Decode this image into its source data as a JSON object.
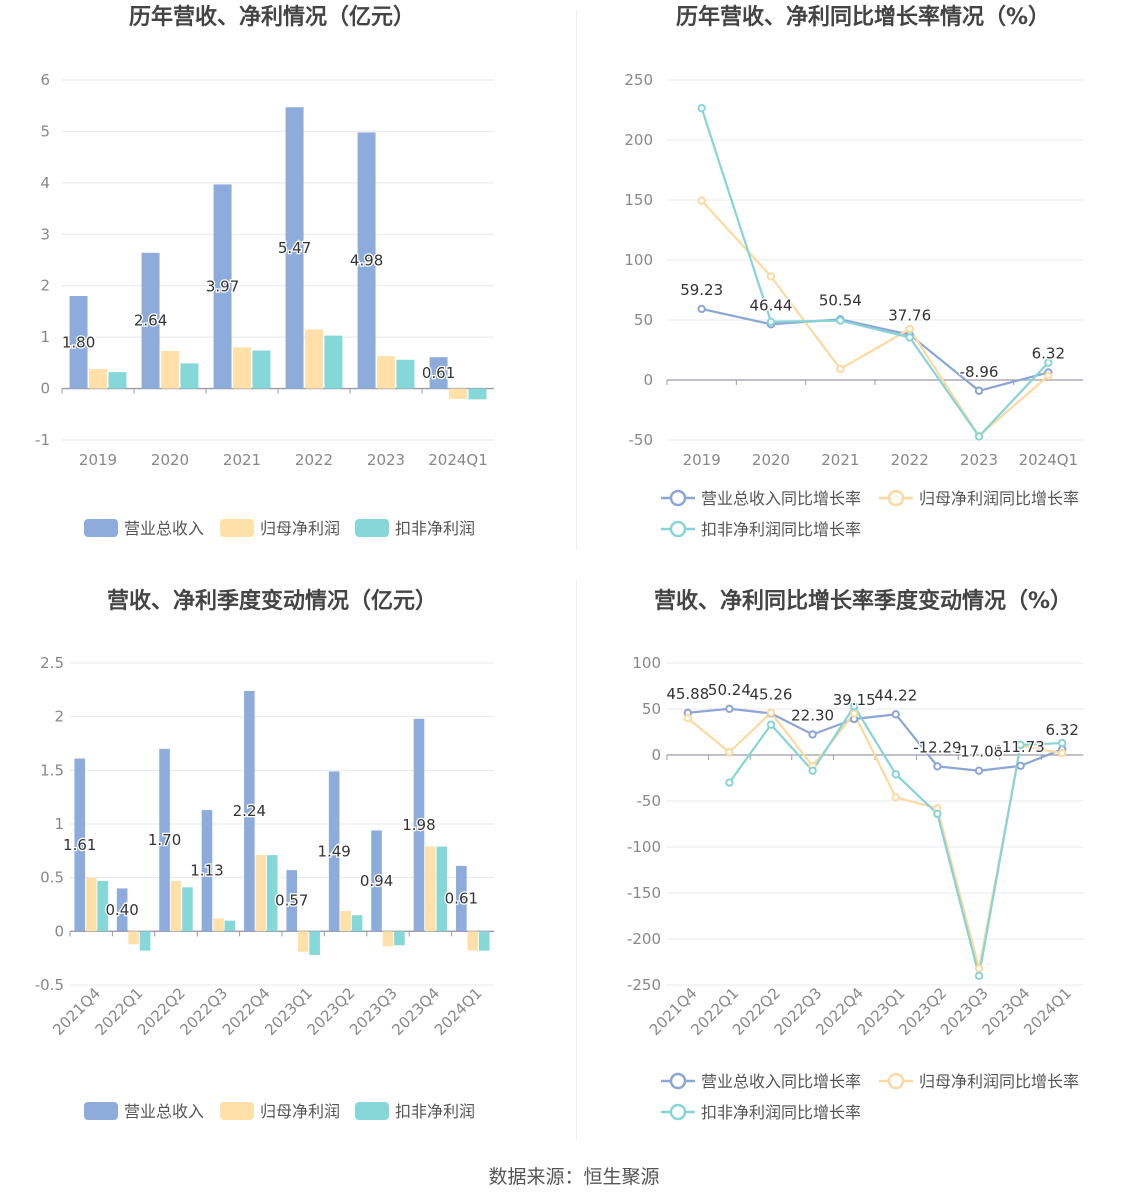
{
  "colors": {
    "revenue": "#8eacdb",
    "parent_profit": "#ffe0a8",
    "deducted_profit": "#86d8d8",
    "revenue_line": "#8ba6d6",
    "parent_line": "#fdd9a0",
    "deducted_line": "#86d4d6",
    "grid": "#e8e8ee",
    "axis_text": "#888888",
    "title": "#444444"
  },
  "source": "数据来源：恒生聚源",
  "chart_data": [
    {
      "type": "bar",
      "title": "历年营收、净利情况（亿元）",
      "categories": [
        "2019",
        "2020",
        "2021",
        "2022",
        "2023",
        "2024Q1"
      ],
      "yticks": [
        "6",
        "5",
        "4",
        "3",
        "2",
        "1",
        "0",
        "-1"
      ],
      "ylim": [
        -1,
        6
      ],
      "series": [
        {
          "name": "营业总收入",
          "values": [
            1.8,
            2.64,
            3.97,
            5.47,
            4.98,
            0.61
          ],
          "labels": [
            "1.80",
            "2.64",
            "3.97",
            "5.47",
            "4.98",
            "0.61"
          ]
        },
        {
          "name": "归母净利润",
          "values": [
            0.38,
            0.73,
            0.8,
            1.15,
            0.63,
            -0.2
          ]
        },
        {
          "name": "扣非净利润",
          "values": [
            0.32,
            0.49,
            0.74,
            1.03,
            0.56,
            -0.21
          ]
        }
      ]
    },
    {
      "type": "line",
      "title": "历年营收、净利同比增长率情况（%）",
      "categories": [
        "2019",
        "2020",
        "2021",
        "2022",
        "2023",
        "2024Q1"
      ],
      "yticks": [
        "250",
        "200",
        "150",
        "100",
        "50",
        "0",
        "-50"
      ],
      "ylim": [
        -50,
        250
      ],
      "series": [
        {
          "name": "营业总收入同比增长率",
          "values": [
            59.23,
            46.44,
            50.54,
            37.76,
            -8.96,
            6.32
          ],
          "labels": [
            "59.23",
            "46.44",
            "50.54",
            "37.76",
            "-8.96",
            "6.32"
          ]
        },
        {
          "name": "归母净利润同比增长率",
          "values": [
            149.5,
            86.3,
            9.2,
            42.5,
            -46.5,
            3.5
          ]
        },
        {
          "name": "扣非净利润同比增长率",
          "values": [
            226.5,
            48.5,
            49.5,
            35.5,
            -47.0,
            14.5
          ]
        }
      ]
    },
    {
      "type": "bar",
      "title": "营收、净利季度变动情况（亿元）",
      "categories": [
        "2021Q4",
        "2022Q1",
        "2022Q2",
        "2022Q3",
        "2022Q4",
        "2023Q1",
        "2023Q2",
        "2023Q3",
        "2023Q4",
        "2024Q1"
      ],
      "yticks": [
        "2.5",
        "2",
        "1.5",
        "1",
        "0.5",
        "0",
        "-0.5"
      ],
      "ylim": [
        -0.5,
        2.5
      ],
      "series": [
        {
          "name": "营业总收入",
          "values": [
            1.61,
            0.4,
            1.7,
            1.13,
            2.24,
            0.57,
            1.49,
            0.94,
            1.98,
            0.61
          ],
          "labels": [
            "1.61",
            "0.40",
            "1.70",
            "1.13",
            "2.24",
            "0.57",
            "1.49",
            "0.94",
            "1.98",
            "0.61"
          ]
        },
        {
          "name": "归母净利润",
          "values": [
            0.5,
            -0.12,
            0.47,
            0.12,
            0.71,
            -0.19,
            0.19,
            -0.14,
            0.79,
            -0.18
          ]
        },
        {
          "name": "扣非净利润",
          "values": [
            0.47,
            -0.18,
            0.41,
            0.1,
            0.71,
            -0.22,
            0.15,
            -0.13,
            0.79,
            -0.18
          ]
        }
      ]
    },
    {
      "type": "line",
      "title": "营收、净利同比增长率季度变动情况（%）",
      "categories": [
        "2021Q4",
        "2022Q1",
        "2022Q2",
        "2022Q3",
        "2022Q4",
        "2023Q1",
        "2023Q2",
        "2023Q3",
        "2023Q4",
        "2024Q1"
      ],
      "yticks": [
        "100",
        "50",
        "0",
        "-50",
        "-100",
        "-150",
        "-200",
        "-250"
      ],
      "ylim": [
        -250,
        100
      ],
      "series": [
        {
          "name": "营业总收入同比增长率",
          "values": [
            45.88,
            50.24,
            45.26,
            22.3,
            39.15,
            44.22,
            -12.29,
            -17.08,
            -11.73,
            6.32
          ],
          "labels": [
            "45.88",
            "50.24",
            "45.26",
            "22.30",
            "39.15",
            "44.22",
            "-12.29",
            "-17.08",
            "-11.73",
            "6.32"
          ]
        },
        {
          "name": "归母净利润同比增长率",
          "values": [
            40.0,
            3.0,
            46.0,
            -12.0,
            45.0,
            -46.0,
            -58.0,
            -232.0,
            10.0,
            2.0
          ]
        },
        {
          "name": "扣非净利润同比增长率",
          "values": [
            null,
            -30.0,
            33.0,
            -17.0,
            53.0,
            -21.0,
            -64.0,
            -240.0,
            11.0,
            13.0
          ]
        }
      ]
    }
  ]
}
